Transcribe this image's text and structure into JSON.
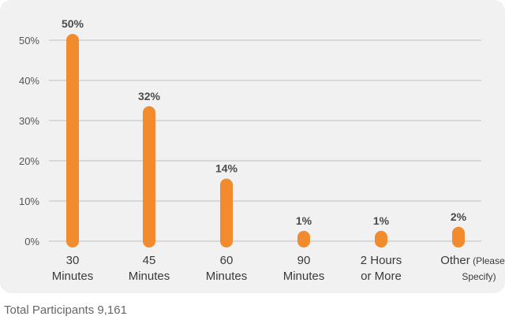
{
  "chart_data": {
    "type": "bar",
    "categories": [
      [
        "30",
        "Minutes"
      ],
      [
        "45",
        "Minutes"
      ],
      [
        "60",
        "Minutes"
      ],
      [
        "90",
        "Minutes"
      ],
      [
        "2 Hours",
        "or More"
      ],
      [
        "Other",
        "Specify)"
      ]
    ],
    "other_note": "(Please",
    "values": [
      50,
      32,
      14,
      1,
      1,
      2
    ],
    "data_labels": [
      "50%",
      "32%",
      "14%",
      "1%",
      "1%",
      "2%"
    ],
    "yticks": [
      "0%",
      "10%",
      "20%",
      "30%",
      "40%",
      "50%"
    ],
    "ylim": [
      0,
      50
    ],
    "grid": true,
    "title": "",
    "xlabel": "",
    "ylabel": "",
    "bar_color": "#f28a2e",
    "grid_color": "#cfcfcf"
  },
  "footer": {
    "text": "Total Participants 9,161"
  }
}
